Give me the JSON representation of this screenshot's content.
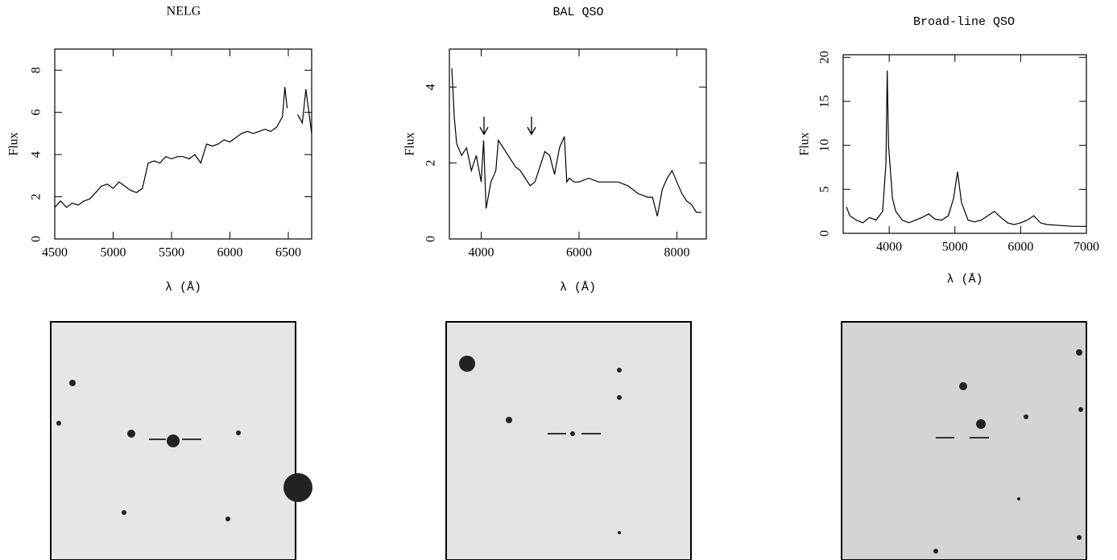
{
  "chart_data": [
    {
      "type": "line",
      "title": "NELG",
      "xlabel": "λ (Å)",
      "ylabel": "Flux",
      "xlim": [
        4500,
        6700
      ],
      "ylim": [
        0,
        9
      ],
      "xticks": [
        4500,
        5000,
        5500,
        6000,
        6500
      ],
      "yticks": [
        0,
        2,
        4,
        6,
        8
      ],
      "color": "#000000",
      "x": [
        4500,
        4550,
        4600,
        4650,
        4700,
        4750,
        4800,
        4850,
        4900,
        4950,
        5000,
        5050,
        5100,
        5150,
        5200,
        5250,
        5300,
        5350,
        5400,
        5450,
        5500,
        5550,
        5600,
        5650,
        5700,
        5750,
        5800,
        5850,
        5900,
        5950,
        6000,
        6050,
        6100,
        6150,
        6200,
        6250,
        6300,
        6350,
        6400,
        6450,
        6470,
        6490,
        6550,
        6580,
        6620,
        6650,
        6700
      ],
      "values": [
        1.5,
        1.8,
        1.5,
        1.7,
        1.6,
        1.8,
        1.9,
        2.2,
        2.5,
        2.6,
        2.4,
        2.7,
        2.5,
        2.3,
        2.2,
        2.4,
        3.6,
        3.7,
        3.6,
        3.9,
        3.8,
        3.9,
        3.9,
        3.8,
        4.0,
        3.6,
        4.5,
        4.4,
        4.5,
        4.7,
        4.6,
        4.8,
        5.0,
        5.1,
        5.0,
        5.1,
        5.2,
        5.1,
        5.3,
        5.8,
        7.2,
        6.2,
        null,
        5.9,
        5.5,
        7.1,
        5.0
      ]
    },
    {
      "type": "line",
      "title": "BAL QSO",
      "xlabel": "λ (Å)",
      "ylabel": "Flux",
      "xlim": [
        3350,
        8600
      ],
      "ylim": [
        0,
        5
      ],
      "xticks": [
        4000,
        6000,
        8000
      ],
      "yticks": [
        0,
        2,
        4
      ],
      "color": "#000000",
      "x": [
        3400,
        3450,
        3500,
        3600,
        3700,
        3800,
        3900,
        4000,
        4050,
        4100,
        4200,
        4300,
        4350,
        4400,
        4500,
        4600,
        4700,
        4800,
        4900,
        5000,
        5100,
        5200,
        5300,
        5400,
        5500,
        5600,
        5700,
        5750,
        5800,
        5900,
        6000,
        6200,
        6400,
        6600,
        6800,
        7000,
        7200,
        7400,
        7500,
        7600,
        7700,
        7800,
        7900,
        8000,
        8100,
        8200,
        8300,
        8400,
        8500
      ],
      "values": [
        4.5,
        3.2,
        2.5,
        2.2,
        2.4,
        1.8,
        2.2,
        1.5,
        2.6,
        0.8,
        1.5,
        1.8,
        2.6,
        2.5,
        2.3,
        2.1,
        1.9,
        1.8,
        1.6,
        1.4,
        1.5,
        1.9,
        2.3,
        2.2,
        1.7,
        2.4,
        2.7,
        1.5,
        1.6,
        1.5,
        1.5,
        1.6,
        1.5,
        1.5,
        1.5,
        1.4,
        1.2,
        1.1,
        1.1,
        0.6,
        1.3,
        1.6,
        1.8,
        1.5,
        1.2,
        1.0,
        0.9,
        0.7,
        0.7
      ]
    },
    {
      "type": "line",
      "title": "Broad-line QSO",
      "xlabel": "λ (Å)",
      "ylabel": "Flux",
      "xlim": [
        3300,
        7000
      ],
      "ylim": [
        0,
        20.3
      ],
      "xticks": [
        4000,
        5000,
        6000,
        7000
      ],
      "yticks": [
        0,
        5,
        10,
        15,
        20
      ],
      "color": "#000000",
      "x": [
        3350,
        3400,
        3500,
        3600,
        3700,
        3800,
        3900,
        3950,
        3970,
        3990,
        4050,
        4100,
        4200,
        4300,
        4400,
        4500,
        4600,
        4700,
        4800,
        4900,
        4980,
        5040,
        5100,
        5200,
        5300,
        5400,
        5500,
        5600,
        5700,
        5800,
        5900,
        6000,
        6100,
        6200,
        6300,
        6400,
        6600,
        6800,
        7000
      ],
      "values": [
        3,
        2,
        1.5,
        1.2,
        1.8,
        1.5,
        2.5,
        8,
        18.5,
        10,
        4,
        2.5,
        1.5,
        1.2,
        1.5,
        1.8,
        2.2,
        1.6,
        1.5,
        2.0,
        4,
        7,
        3.5,
        1.5,
        1.3,
        1.5,
        2.0,
        2.5,
        1.8,
        1.2,
        1.0,
        1.2,
        1.5,
        2.0,
        1.2,
        1.0,
        0.9,
        0.8,
        0.8
      ]
    }
  ]
}
